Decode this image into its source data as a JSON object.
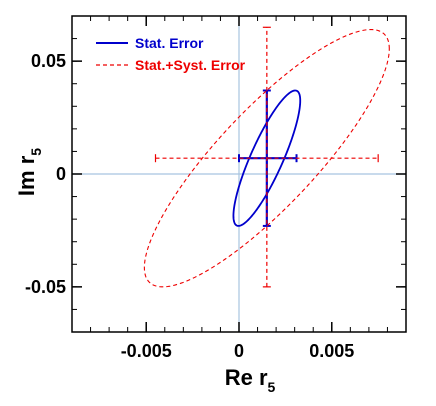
{
  "chart_data": {
    "type": "scatter",
    "title": "",
    "xlabel": {
      "main": "Re r",
      "sub": "5"
    },
    "ylabel": {
      "main": "Im r",
      "sub": "5"
    },
    "xlim": [
      -0.009,
      0.009
    ],
    "ylim": [
      -0.07,
      0.07
    ],
    "xticks": [
      {
        "value": -0.005,
        "label": "-0.005"
      },
      {
        "value": 0,
        "label": "0"
      },
      {
        "value": 0.005,
        "label": "0.005"
      }
    ],
    "yticks": [
      {
        "value": 0.05,
        "label": "0.05"
      },
      {
        "value": 0,
        "label": "0"
      },
      {
        "value": -0.05,
        "label": "-0.05"
      }
    ],
    "x_minor_step": 0.001,
    "y_minor_step": 0.01,
    "reference_lines": {
      "x": 0,
      "y": 0,
      "color": "#a8c4e0"
    },
    "central_value": {
      "x": 0.0015,
      "y": 0.007
    },
    "series": [
      {
        "name": "Stat. Error",
        "color": "#0000cc",
        "style": "solid",
        "errorbar_x": [
          0.0,
          0.0031
        ],
        "errorbar_y": [
          -0.023,
          0.037
        ],
        "ellipse": {
          "cx": 0.0015,
          "cy": 0.007,
          "x_half_extent": 0.0018,
          "y_half_extent": 0.03,
          "rho": 0.85
        }
      },
      {
        "name": "Stat.+Syst. Error",
        "color": "#ee0000",
        "style": "dashed",
        "errorbar_x": [
          -0.0045,
          0.0075
        ],
        "errorbar_y": [
          -0.05,
          0.065
        ],
        "ellipse": {
          "cx": 0.0015,
          "cy": 0.007,
          "x_half_extent": 0.0066,
          "y_half_extent": 0.057,
          "rho": 0.85
        }
      }
    ],
    "legend": {
      "position": "top-left"
    }
  }
}
